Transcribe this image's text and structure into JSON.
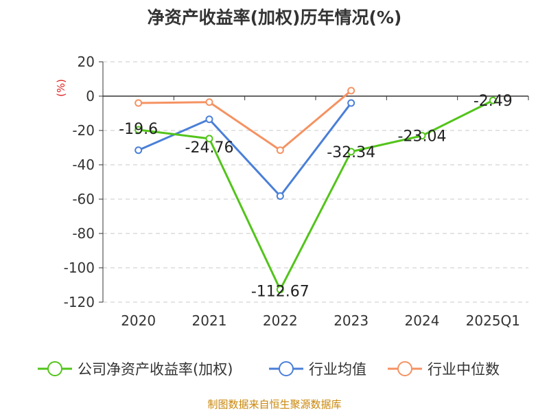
{
  "chart_data": {
    "type": "line",
    "title": "净资产收益率(加权)历年情况(%)",
    "ylabel": "(%)",
    "categories": [
      "2020",
      "2021",
      "2022",
      "2023",
      "2024",
      "2025Q1"
    ],
    "y_ticks": [
      "20",
      "0",
      "-20",
      "-40",
      "-60",
      "-80",
      "-100",
      "-120"
    ],
    "ylim": [
      -120,
      20
    ],
    "grid": true,
    "legend_position": "bottom",
    "series": [
      {
        "name": "公司净资产收益率(加权)",
        "color": "#52c41a",
        "values": [
          -19.6,
          -24.76,
          -112.67,
          -32.34,
          -23.04,
          -2.49
        ],
        "labels": [
          "-19.6",
          "-24.76",
          "-112.67",
          "-32.34",
          "-23.04",
          "-2.49"
        ]
      },
      {
        "name": "行业均值",
        "color": "#4a7fd8",
        "values": [
          -31.5,
          -13.5,
          -58.2,
          -4.0,
          null,
          null
        ]
      },
      {
        "name": "行业中位数",
        "color": "#f59262",
        "values": [
          -4.0,
          -3.5,
          -31.5,
          3.2,
          null,
          null
        ]
      }
    ]
  },
  "footer": {
    "source": "制图数据来自恒生聚源数据库"
  }
}
